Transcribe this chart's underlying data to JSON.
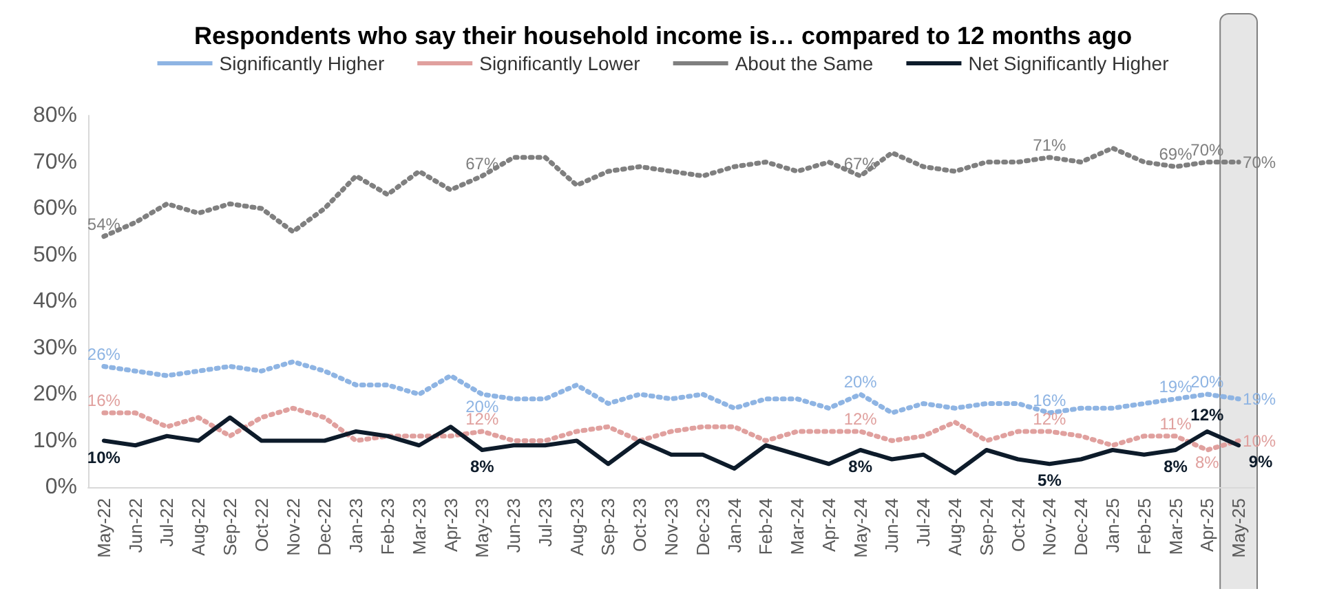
{
  "chart_data": {
    "type": "line",
    "title": "Respondents who say their household income is… compared to 12 months ago",
    "categories": [
      "May-22",
      "Jun-22",
      "Jul-22",
      "Aug-22",
      "Sep-22",
      "Oct-22",
      "Nov-22",
      "Dec-22",
      "Jan-23",
      "Feb-23",
      "Mar-23",
      "Apr-23",
      "May-23",
      "Jun-23",
      "Jul-23",
      "Aug-23",
      "Sep-23",
      "Oct-23",
      "Nov-23",
      "Dec-23",
      "Jan-24",
      "Feb-24",
      "Mar-24",
      "Apr-24",
      "May-24",
      "Jun-24",
      "Jul-24",
      "Aug-24",
      "Sep-24",
      "Oct-24",
      "Nov-24",
      "Dec-24",
      "Jan-25",
      "Feb-25",
      "Mar-25",
      "Apr-25",
      "May-25"
    ],
    "series": [
      {
        "name": "Significantly Higher",
        "color": "#8eb4e3",
        "line_style": "dotted",
        "values": [
          26,
          25,
          24,
          25,
          26,
          25,
          27,
          25,
          22,
          22,
          20,
          24,
          20,
          19,
          19,
          22,
          18,
          20,
          19,
          20,
          17,
          19,
          19,
          17,
          20,
          16,
          18,
          17,
          18,
          18,
          16,
          17,
          17,
          18,
          19,
          20,
          19
        ],
        "value_labels": [
          "26%",
          null,
          null,
          null,
          null,
          null,
          null,
          null,
          null,
          null,
          null,
          null,
          "20%",
          null,
          null,
          null,
          null,
          null,
          null,
          null,
          null,
          null,
          null,
          null,
          "20%",
          null,
          null,
          null,
          null,
          null,
          "16%",
          null,
          null,
          null,
          "19%",
          "20%",
          "19%"
        ]
      },
      {
        "name": "Significantly Lower",
        "color": "#e0a09e",
        "line_style": "dotted",
        "values": [
          16,
          16,
          13,
          15,
          11,
          15,
          17,
          15,
          10,
          11,
          11,
          11,
          12,
          10,
          10,
          12,
          13,
          10,
          12,
          13,
          13,
          10,
          12,
          12,
          12,
          10,
          11,
          14,
          10,
          12,
          12,
          11,
          9,
          11,
          11,
          8,
          10
        ],
        "value_labels": [
          "16%",
          null,
          null,
          null,
          null,
          null,
          null,
          null,
          null,
          null,
          null,
          null,
          "12%",
          null,
          null,
          null,
          null,
          null,
          null,
          null,
          null,
          null,
          null,
          null,
          "12%",
          null,
          null,
          null,
          null,
          null,
          "12%",
          null,
          null,
          null,
          "11%",
          "8%",
          "10%"
        ]
      },
      {
        "name": "About the Same",
        "color": "#7f7f7f",
        "line_style": "dotted",
        "values": [
          54,
          57,
          61,
          59,
          61,
          60,
          55,
          60,
          67,
          63,
          68,
          64,
          67,
          71,
          71,
          65,
          68,
          69,
          68,
          67,
          69,
          70,
          68,
          70,
          67,
          72,
          69,
          68,
          70,
          70,
          71,
          70,
          73,
          70,
          69,
          70,
          70
        ],
        "value_labels": [
          "54%",
          null,
          null,
          null,
          null,
          null,
          null,
          null,
          null,
          null,
          null,
          null,
          "67%",
          null,
          null,
          null,
          null,
          null,
          null,
          null,
          null,
          null,
          null,
          null,
          "67%",
          null,
          null,
          null,
          null,
          null,
          "71%",
          null,
          null,
          null,
          "69%",
          "70%",
          "70%"
        ]
      },
      {
        "name": "Net Significantly Higher",
        "color": "#0d1b2a",
        "line_style": "solid",
        "values": [
          10,
          9,
          11,
          10,
          15,
          10,
          10,
          10,
          12,
          11,
          9,
          13,
          8,
          9,
          9,
          10,
          5,
          10,
          7,
          7,
          4,
          9,
          7,
          5,
          8,
          6,
          7,
          3,
          8,
          6,
          5,
          6,
          8,
          7,
          8,
          12,
          9
        ],
        "value_labels": [
          "10%",
          null,
          null,
          null,
          null,
          null,
          null,
          null,
          null,
          null,
          null,
          null,
          "8%",
          null,
          null,
          null,
          null,
          null,
          null,
          null,
          null,
          null,
          null,
          null,
          "8%",
          null,
          null,
          null,
          null,
          null,
          "5%",
          null,
          null,
          null,
          "8%",
          "12%",
          "9%"
        ]
      }
    ],
    "ylim": [
      0,
      80
    ],
    "yticks": [
      {
        "value": 0,
        "label": "0%"
      },
      {
        "value": 10,
        "label": "10%"
      },
      {
        "value": 20,
        "label": "20%"
      },
      {
        "value": 30,
        "label": "30%"
      },
      {
        "value": 40,
        "label": "40%"
      },
      {
        "value": 50,
        "label": "50%"
      },
      {
        "value": 60,
        "label": "60%"
      },
      {
        "value": 70,
        "label": "70%"
      },
      {
        "value": 80,
        "label": "80%"
      }
    ],
    "bands": [
      {
        "axis": "x",
        "from": "May-25",
        "to": "May-25",
        "color": "#e6e6e6"
      }
    ],
    "legend": "top",
    "marker": "none",
    "grid": false
  }
}
